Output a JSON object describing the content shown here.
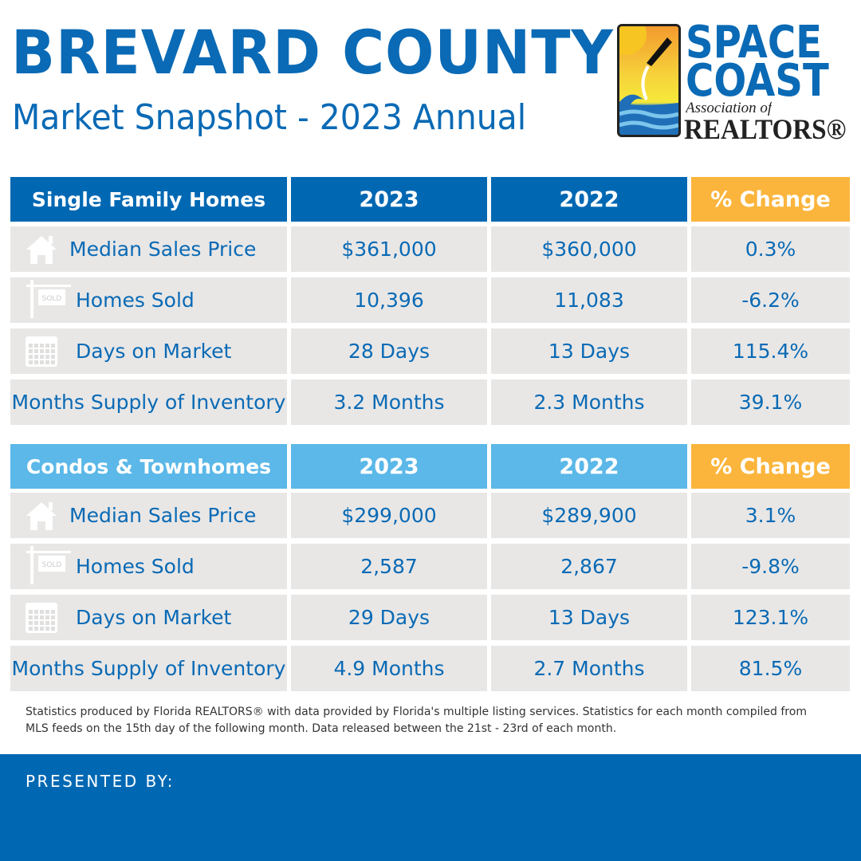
{
  "header": {
    "title": "BREVARD COUNTY",
    "subtitle": "Market Snapshot - 2023 Annual"
  },
  "logo": {
    "line1": "SPACE",
    "line2": "COAST",
    "line3": "Association of",
    "line4": "REALTORS®"
  },
  "colors": {
    "primary": "#0068b3",
    "secondary": "#5bb8e8",
    "accent": "#fbb53c",
    "row_bg": "#e8e7e6"
  },
  "tables": [
    {
      "title": "Single Family Homes",
      "columns": [
        "2023",
        "2022",
        "% Change"
      ],
      "rows": [
        {
          "icon": "house-icon",
          "label": "Median Sales Price",
          "values": [
            "$361,000",
            "$360,000",
            "0.3%"
          ]
        },
        {
          "icon": "sold-sign-icon",
          "label": "Homes Sold",
          "values": [
            "10,396",
            "11,083",
            "-6.2%"
          ]
        },
        {
          "icon": "calendar-icon",
          "label": "Days on Market",
          "values": [
            "28 Days",
            "13 Days",
            "115.4%"
          ]
        },
        {
          "icon": "",
          "label": "Months Supply of Inventory",
          "values": [
            "3.2 Months",
            "2.3 Months",
            "39.1%"
          ]
        }
      ]
    },
    {
      "title": "Condos & Townhomes",
      "columns": [
        "2023",
        "2022",
        "% Change"
      ],
      "rows": [
        {
          "icon": "house-icon",
          "label": "Median Sales Price",
          "values": [
            "$299,000",
            "$289,900",
            "3.1%"
          ]
        },
        {
          "icon": "sold-sign-icon",
          "label": "Homes Sold",
          "values": [
            "2,587",
            "2,867",
            "-9.8%"
          ]
        },
        {
          "icon": "calendar-icon",
          "label": "Days on Market",
          "values": [
            "29 Days",
            "13 Days",
            "123.1%"
          ]
        },
        {
          "icon": "",
          "label": "Months Supply of Inventory",
          "values": [
            "4.9 Months",
            "2.7 Months",
            "81.5%"
          ]
        }
      ]
    }
  ],
  "footnote": "Statistics produced by Florida REALTORS® with data provided by Florida's multiple listing services. Statistics for each month compiled from MLS feeds on the 15th day of the following month. Data released between the 21st - 23rd of each month.",
  "footer": {
    "presented_by": "PRESENTED BY:"
  }
}
